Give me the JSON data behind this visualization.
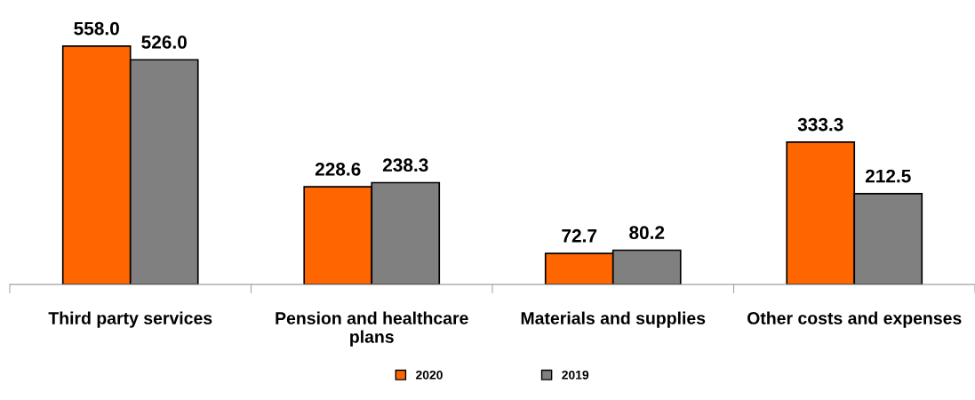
{
  "chart_data": {
    "type": "bar",
    "categories": [
      "Third party services",
      "Pension and healthcare\nplans",
      "Materials and supplies",
      "Other costs and expenses"
    ],
    "series": [
      {
        "name": "2020",
        "color": "#ff6600",
        "values": [
          558.0,
          228.6,
          72.7,
          333.3
        ],
        "value_labels": [
          "558.0",
          "228.6",
          "72.7",
          "333.3"
        ]
      },
      {
        "name": "2019",
        "color": "#808080",
        "values": [
          526.0,
          238.3,
          80.2,
          212.5
        ],
        "value_labels": [
          "526.0",
          "238.3",
          "80.2",
          "212.5"
        ]
      }
    ],
    "legend": "bottom",
    "grid": false
  }
}
